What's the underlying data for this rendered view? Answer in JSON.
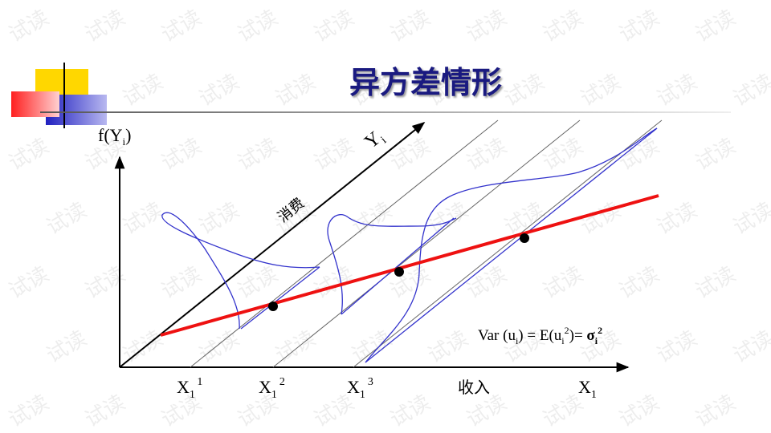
{
  "title": "异方差情形",
  "watermark": "试读",
  "y_axis_label": {
    "main": "f(Y",
    "sub": "i",
    "close": ")"
  },
  "diagonal_label": {
    "main": "Y",
    "sub": "i"
  },
  "consumption_label": "消费",
  "x_marks": [
    {
      "main": "X",
      "sub": "1",
      "sup": "1"
    },
    {
      "main": "X",
      "sub": "1",
      "sup": "2"
    },
    {
      "main": "X",
      "sub": "1",
      "sup": "3"
    }
  ],
  "income_label": "收入",
  "x_axis_label": {
    "main": "X",
    "sub": "1"
  },
  "formula": {
    "part1": "Var (u",
    "sub1": "i",
    "part2": ") = E(u",
    "sub2": "i",
    "sup2": "2",
    "part3": ")= ",
    "sigma": "σ",
    "sub3": "i",
    "sup3": "2"
  }
}
